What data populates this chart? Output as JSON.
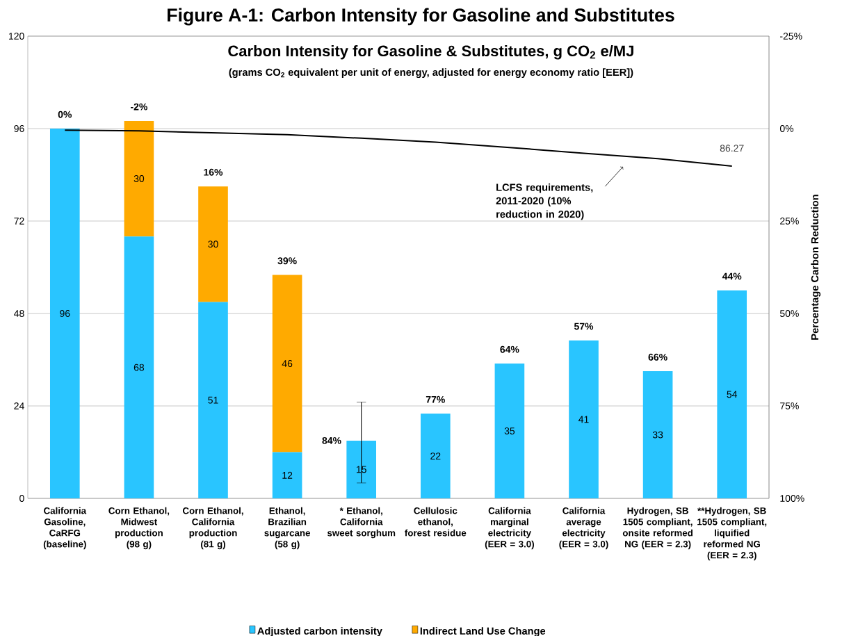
{
  "chart_data": {
    "type": "bar",
    "title": "Figure A-1: Carbon Intensity for Gasoline and Substitutes",
    "subtitle": "Carbon Intensity for Gasoline & Substitutes, g CO$_{2}$ e/MJ",
    "y2label": "Percentage Carbon Reduction",
    "categories": [
      "California Gasoline, CaRFG (baseline)",
      "Corn Ethanol, Midwest production (98 g)",
      "Corn Ethanol, California production (81 g)",
      "Ethanol, Brazilian sugarcane (58 g)",
      "* Ethanol, California sweet sorghum",
      "Cellulosic ethanol, forest residue",
      "California marginal electricity (EER = 3.0)",
      "California average electricity (EER = 3.0)",
      "Hydrogen, SB 1505 compliant, onsite reformed NG (EER = 2.3)",
      "**Hydrogen, SB 1505 compliant, liquified reformed NG (EER = 2.3)"
    ],
    "stacked": true,
    "series": [
      {
        "name": "Adjusted carbon intensity",
        "color": "#29c5ff",
        "values": [
          96,
          68,
          51,
          12,
          15,
          22,
          35,
          41,
          33,
          54
        ],
        "value_labels": [
          "96",
          "68",
          "51",
          "12",
          "15",
          "22",
          "35",
          "41",
          "33",
          "54"
        ],
        "errors": [
          null,
          null,
          null,
          null,
          [
            4,
            25
          ],
          null,
          null,
          null,
          null,
          null
        ]
      },
      {
        "name": "Indirect Land Use Change",
        "color": "#ffaa00",
        "values": [
          null,
          30,
          30,
          46,
          null,
          null,
          null,
          null,
          null,
          null
        ],
        "value_labels": [
          null,
          "30",
          "30",
          "46",
          null,
          null,
          null,
          null,
          null,
          null
        ]
      },
      {
        "type": "line",
        "color": "#000000",
        "line_style": "solid",
        "marker": "none",
        "values": [
          95.6,
          95.4,
          94.9,
          94.4,
          93.5,
          92.5,
          91.1,
          89.6,
          88.2,
          86.27
        ],
        "value_labels": [
          null,
          null,
          null,
          null,
          null,
          null,
          null,
          null,
          null,
          "86.27"
        ]
      }
    ],
    "ylim": [
      0,
      120
    ],
    "yticks": [
      0,
      24,
      48,
      72,
      96,
      120
    ],
    "y2lim": [
      100,
      -25
    ],
    "y2ticks": [
      {
        "value": -25,
        "label": "-25%"
      },
      {
        "value": 0,
        "label": "0%"
      },
      {
        "value": 25,
        "label": "25%"
      },
      {
        "value": 50,
        "label": "50%"
      },
      {
        "value": 75,
        "label": "75%"
      },
      {
        "value": 100,
        "label": "100%"
      }
    ],
    "annotations": [
      "(grams CO$_{2}$ equivalent per unit of energy, adjusted for energy economy ratio [EER])",
      "LCFS requirements, 2011-2020 (10% reduction in 2020)",
      {
        "text": "0%",
        "x": "California Gasoline, CaRFG (baseline)",
        "y": 96
      },
      {
        "text": "-2%",
        "x": "Corn Ethanol, Midwest production (98 g)",
        "y": 98
      },
      {
        "text": "16%",
        "x": "Corn Ethanol, California production (81 g)",
        "y": 81
      },
      {
        "text": "39%",
        "x": "Ethanol, Brazilian sugarcane (58 g)",
        "y": 58
      },
      {
        "text": "84%",
        "x": "* Ethanol, California sweet sorghum",
        "y": 15
      },
      {
        "text": "77%",
        "x": "Cellulosic ethanol, forest residue",
        "y": 22
      },
      {
        "text": "64%",
        "x": "California marginal electricity (EER = 3.0)",
        "y": 35
      },
      {
        "text": "57%",
        "x": "California average electricity (EER = 3.0)",
        "y": 41
      },
      {
        "text": "66%",
        "x": "Hydrogen, SB 1505 compliant, onsite reformed NG (EER = 2.3)",
        "y": 33
      },
      {
        "text": "44%",
        "x": "**Hydrogen, SB 1505 compliant, liquified reformed NG (EER = 2.3)",
        "y": 54
      }
    ],
    "grid": "y",
    "legend": "bottom"
  }
}
